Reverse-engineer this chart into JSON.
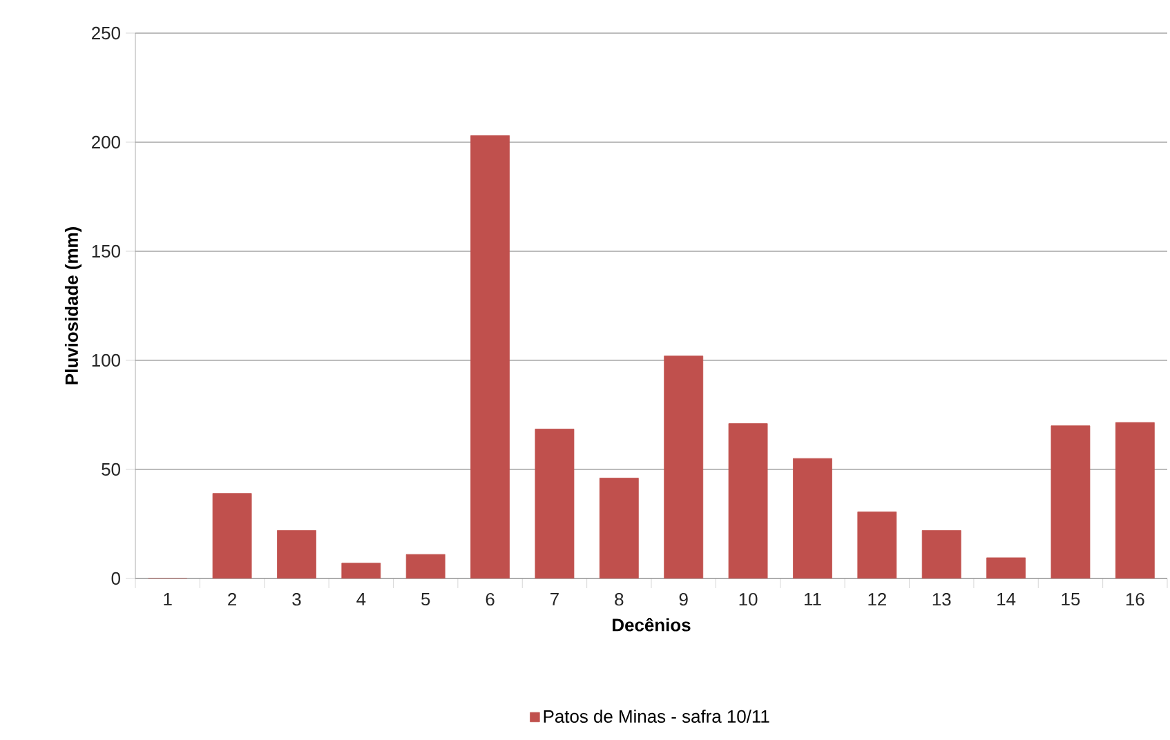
{
  "chart_data": {
    "type": "bar",
    "xlabel": "Decênios",
    "ylabel": "Pluviosidade (mm)",
    "categories": [
      "1",
      "2",
      "3",
      "4",
      "5",
      "6",
      "7",
      "8",
      "9",
      "10",
      "11",
      "12",
      "13",
      "14",
      "15",
      "16"
    ],
    "series": [
      {
        "name": "Patos de Minas - safra 10/11",
        "color": "#c0504d",
        "values": [
          0,
          39,
          22,
          7,
          11,
          203,
          68.5,
          46,
          102,
          71,
          55,
          30.5,
          22,
          9.5,
          70,
          71.5
        ]
      }
    ],
    "ylim": [
      0,
      250
    ],
    "yticks": [
      0,
      50,
      100,
      150,
      200,
      250
    ],
    "grid": "y",
    "legend": "bottom"
  }
}
